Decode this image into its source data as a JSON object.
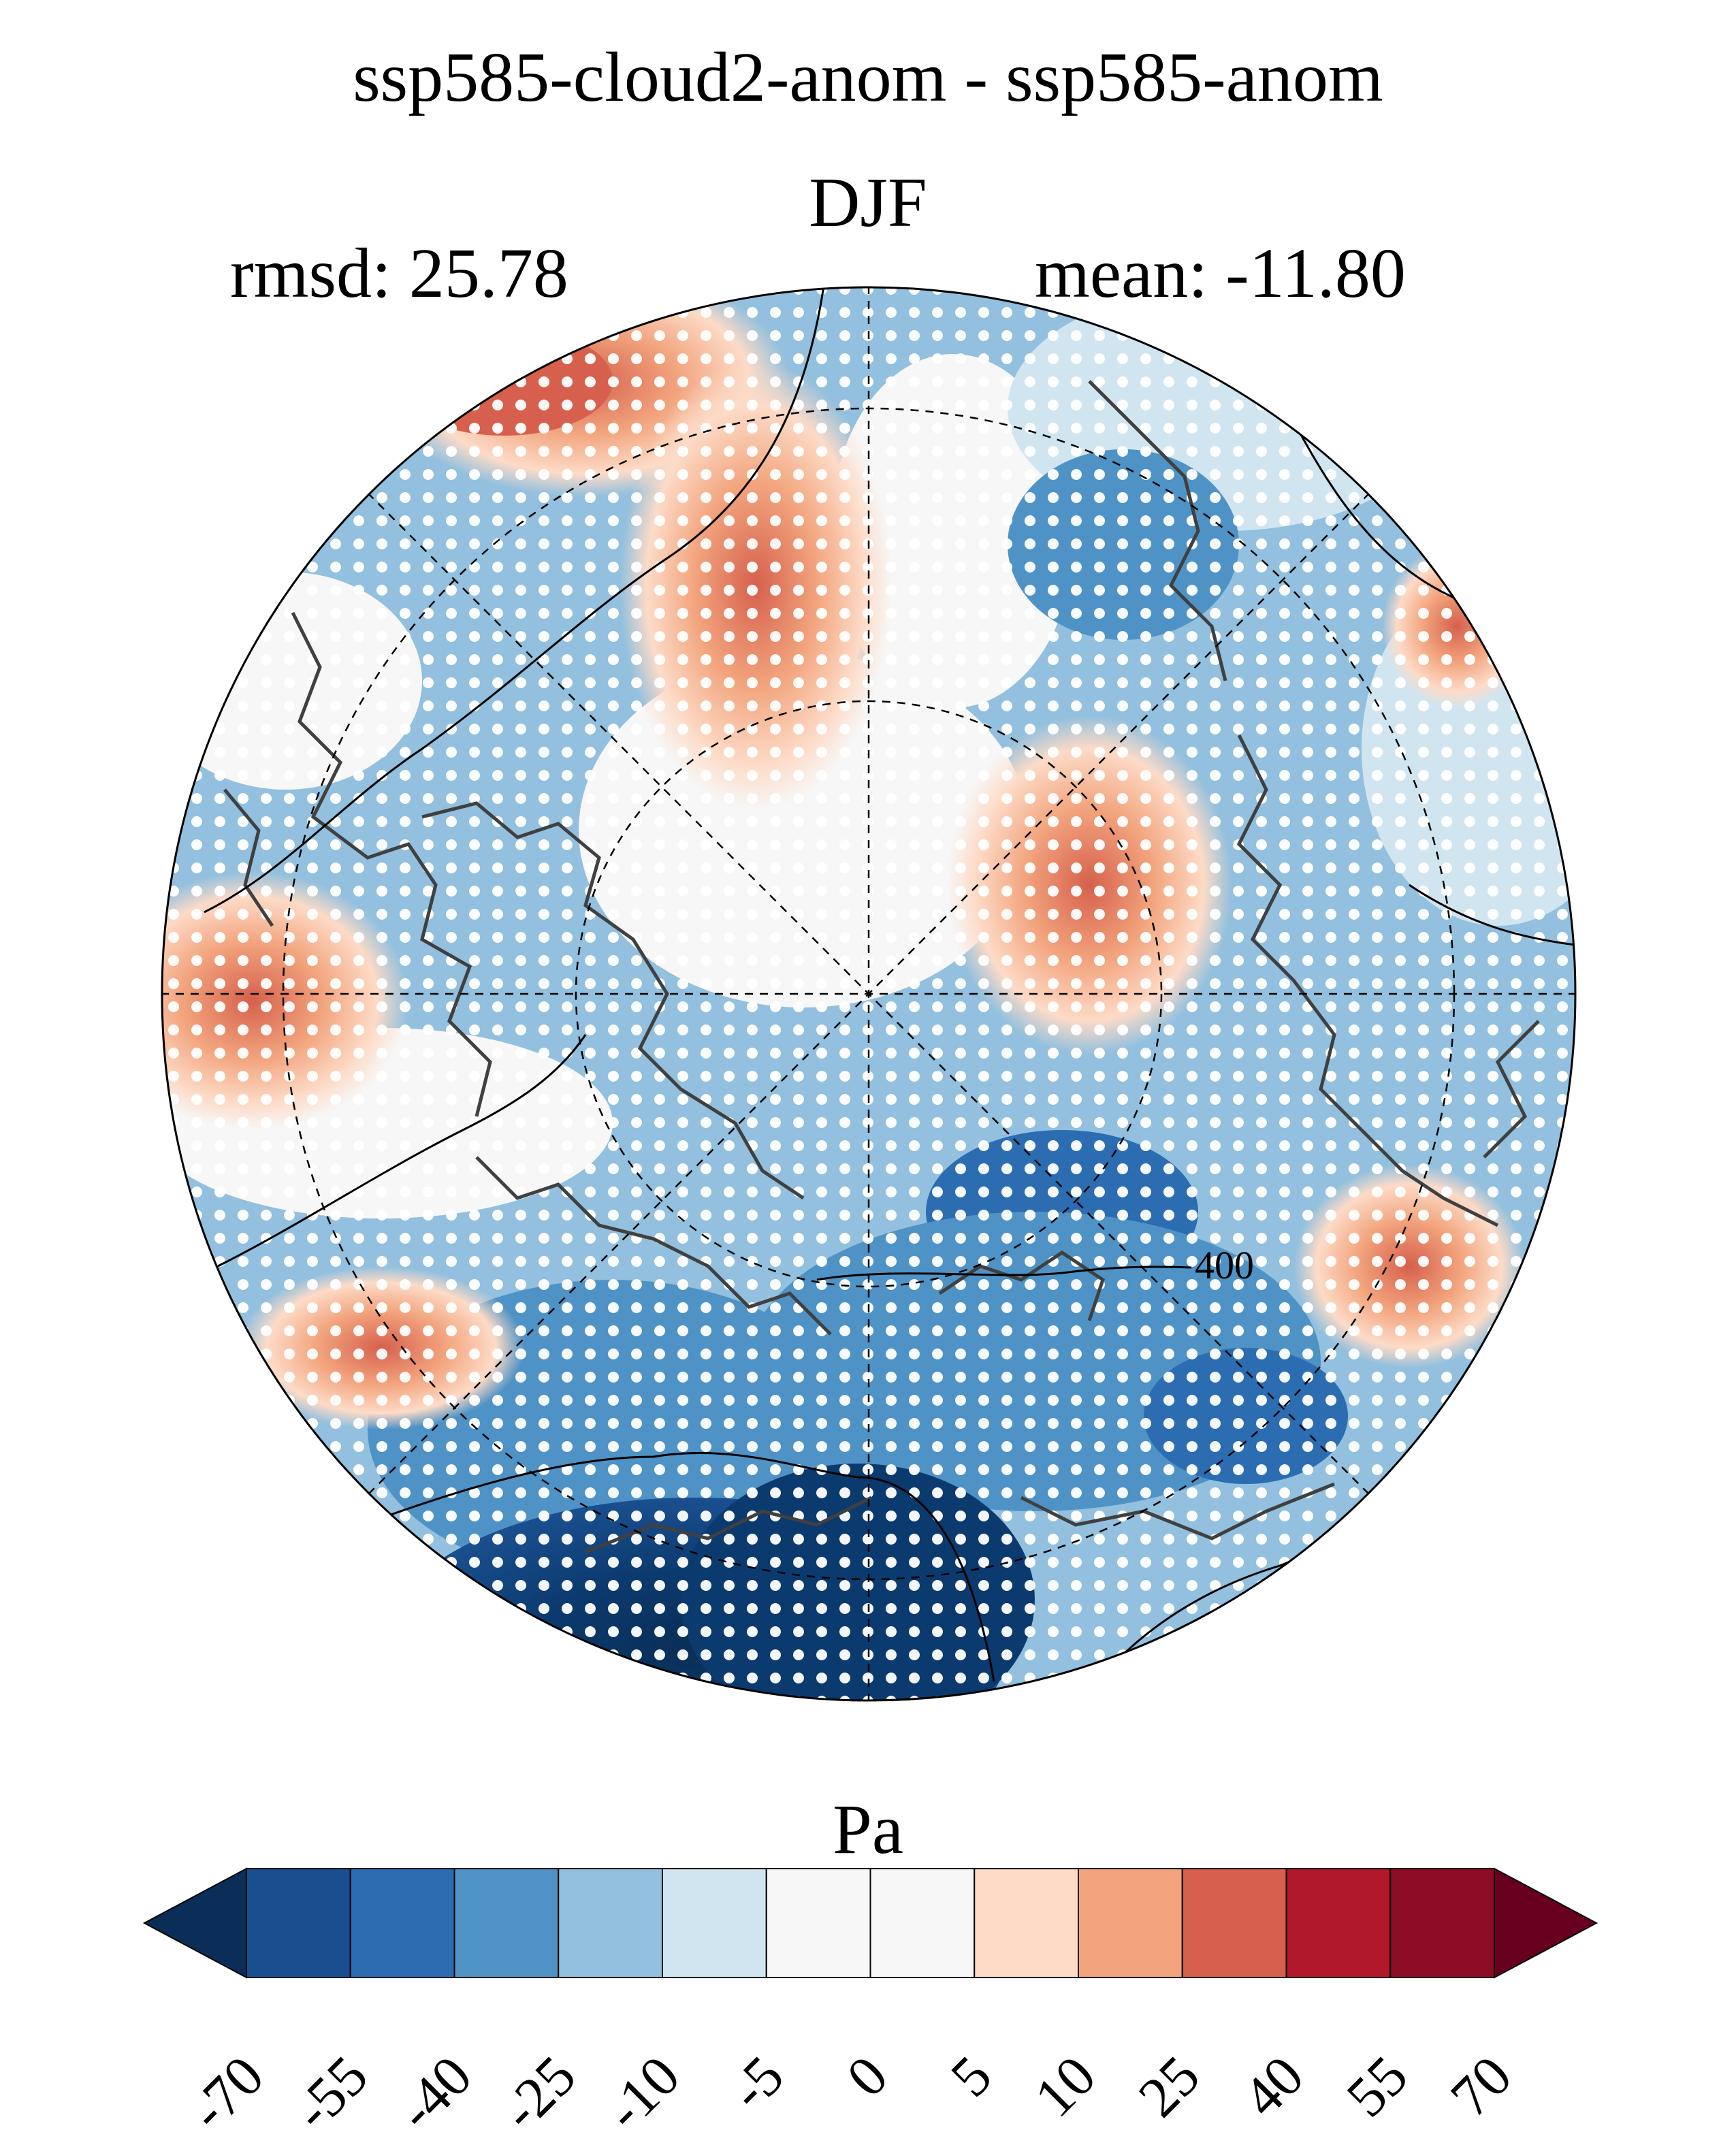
{
  "title": "ssp585-cloud2-anom - ssp585-anom",
  "season": "DJF",
  "stats": {
    "rmsd_label": "rmsd: 25.78",
    "mean_label": "mean: -11.80"
  },
  "map": {
    "projection": "north polar stereographic",
    "contour_label": "400",
    "stippling": "significance dots"
  },
  "colorbar": {
    "unit": "Pa",
    "ticks": [
      "-70",
      "-55",
      "-40",
      "-25",
      "-10",
      "-5",
      "0",
      "5",
      "10",
      "25",
      "40",
      "55",
      "70"
    ],
    "colors": [
      "#0a2e57",
      "#1a4f8f",
      "#2c6db2",
      "#4f93c6",
      "#92c0de",
      "#d1e5f0",
      "#f7f7f7",
      "#f7f7f7",
      "#fddbc7",
      "#f2a47d",
      "#d6604d",
      "#b2182b",
      "#8c0d25",
      "#67001f"
    ],
    "extend_low_color": "#0a2e57",
    "extend_high_color": "#67001f"
  }
}
